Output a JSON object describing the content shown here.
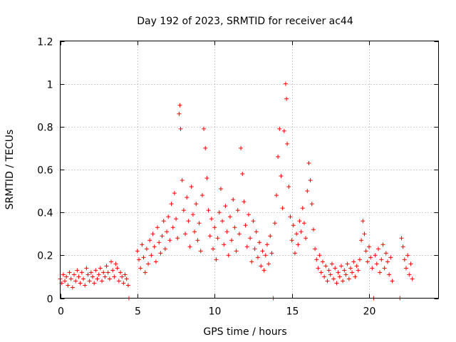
{
  "chart_data": {
    "type": "scatter",
    "title": "Day 192 of 2023, SRMTID for receiver ac44",
    "xlabel": "GPS time / hours",
    "ylabel": "SRMTID / TECUs",
    "xlim": [
      0,
      24.5
    ],
    "ylim": [
      0,
      1.2
    ],
    "grid": true,
    "legend": "none",
    "marker": "+",
    "marker_color": "#ff0000",
    "x_ticks": [
      {
        "value": 0,
        "label": "0"
      },
      {
        "value": 5,
        "label": "5"
      },
      {
        "value": 10,
        "label": "10"
      },
      {
        "value": 15,
        "label": "15"
      },
      {
        "value": 20,
        "label": "20"
      }
    ],
    "y_ticks": [
      {
        "value": 0,
        "label": "0"
      },
      {
        "value": 0.2,
        "label": "0.2"
      },
      {
        "value": 0.4,
        "label": "0.4"
      },
      {
        "value": 0.6,
        "label": "0.6"
      },
      {
        "value": 0.8,
        "label": "0.8"
      },
      {
        "value": 1.0,
        "label": "1"
      },
      {
        "value": 1.2,
        "label": "1.2"
      }
    ],
    "series": [
      {
        "name": "SRMTID",
        "points": [
          [
            0.0,
            0.09
          ],
          [
            0.1,
            0.07
          ],
          [
            0.2,
            0.11
          ],
          [
            0.3,
            0.08
          ],
          [
            0.4,
            0.1
          ],
          [
            0.5,
            0.06
          ],
          [
            0.6,
            0.12
          ],
          [
            0.7,
            0.09
          ],
          [
            0.8,
            0.05
          ],
          [
            0.9,
            0.11
          ],
          [
            1.0,
            0.08
          ],
          [
            1.1,
            0.13
          ],
          [
            1.2,
            0.1
          ],
          [
            1.3,
            0.07
          ],
          [
            1.4,
            0.12
          ],
          [
            1.5,
            0.09
          ],
          [
            1.6,
            0.06
          ],
          [
            1.7,
            0.14
          ],
          [
            1.8,
            0.11
          ],
          [
            1.9,
            0.08
          ],
          [
            2.0,
            0.12
          ],
          [
            2.1,
            0.1
          ],
          [
            2.2,
            0.07
          ],
          [
            2.3,
            0.13
          ],
          [
            2.4,
            0.09
          ],
          [
            2.5,
            0.11
          ],
          [
            2.6,
            0.14
          ],
          [
            2.7,
            0.08
          ],
          [
            2.8,
            0.12
          ],
          [
            2.9,
            0.1
          ],
          [
            3.0,
            0.15
          ],
          [
            3.1,
            0.12
          ],
          [
            3.2,
            0.09
          ],
          [
            3.3,
            0.17
          ],
          [
            3.4,
            0.13
          ],
          [
            3.5,
            0.1
          ],
          [
            3.6,
            0.16
          ],
          [
            3.7,
            0.14
          ],
          [
            3.8,
            0.08
          ],
          [
            3.9,
            0.12
          ],
          [
            4.0,
            0.1
          ],
          [
            4.1,
            0.07
          ],
          [
            4.2,
            0.11
          ],
          [
            4.3,
            0.09
          ],
          [
            4.4,
            0.06
          ],
          [
            4.45,
            0.0
          ],
          [
            5.0,
            0.22
          ],
          [
            5.1,
            0.18
          ],
          [
            5.2,
            0.14
          ],
          [
            5.3,
            0.25
          ],
          [
            5.4,
            0.19
          ],
          [
            5.5,
            0.12
          ],
          [
            5.6,
            0.23
          ],
          [
            5.7,
            0.16
          ],
          [
            5.8,
            0.27
          ],
          [
            5.9,
            0.2
          ],
          [
            6.0,
            0.3
          ],
          [
            6.1,
            0.24
          ],
          [
            6.2,
            0.17
          ],
          [
            6.3,
            0.33
          ],
          [
            6.4,
            0.26
          ],
          [
            6.5,
            0.21
          ],
          [
            6.6,
            0.29
          ],
          [
            6.7,
            0.36
          ],
          [
            6.8,
            0.23
          ],
          [
            6.9,
            0.31
          ],
          [
            7.0,
            0.38
          ],
          [
            7.1,
            0.27
          ],
          [
            7.2,
            0.44
          ],
          [
            7.3,
            0.33
          ],
          [
            7.4,
            0.49
          ],
          [
            7.5,
            0.37
          ],
          [
            7.6,
            0.28
          ],
          [
            7.7,
            0.86
          ],
          [
            7.75,
            0.9
          ],
          [
            7.8,
            0.79
          ],
          [
            7.9,
            0.55
          ],
          [
            8.0,
            0.41
          ],
          [
            8.1,
            0.3
          ],
          [
            8.2,
            0.47
          ],
          [
            8.3,
            0.36
          ],
          [
            8.4,
            0.24
          ],
          [
            8.5,
            0.52
          ],
          [
            8.6,
            0.39
          ],
          [
            8.7,
            0.31
          ],
          [
            8.8,
            0.44
          ],
          [
            8.9,
            0.27
          ],
          [
            9.0,
            0.35
          ],
          [
            9.1,
            0.22
          ],
          [
            9.2,
            0.48
          ],
          [
            9.3,
            0.79
          ],
          [
            9.4,
            0.7
          ],
          [
            9.5,
            0.56
          ],
          [
            9.6,
            0.41
          ],
          [
            9.7,
            0.29
          ],
          [
            9.8,
            0.37
          ],
          [
            9.9,
            0.23
          ],
          [
            10.0,
            0.33
          ],
          [
            10.1,
            0.18
          ],
          [
            10.2,
            0.28
          ],
          [
            10.3,
            0.4
          ],
          [
            10.4,
            0.51
          ],
          [
            10.5,
            0.36
          ],
          [
            10.6,
            0.25
          ],
          [
            10.7,
            0.43
          ],
          [
            10.8,
            0.31
          ],
          [
            10.9,
            0.2
          ],
          [
            11.0,
            0.38
          ],
          [
            11.1,
            0.27
          ],
          [
            11.2,
            0.46
          ],
          [
            11.3,
            0.33
          ],
          [
            11.4,
            0.22
          ],
          [
            11.5,
            0.41
          ],
          [
            11.6,
            0.3
          ],
          [
            11.7,
            0.7
          ],
          [
            11.8,
            0.58
          ],
          [
            11.9,
            0.45
          ],
          [
            12.0,
            0.34
          ],
          [
            12.1,
            0.24
          ],
          [
            12.2,
            0.39
          ],
          [
            12.3,
            0.28
          ],
          [
            12.4,
            0.17
          ],
          [
            12.5,
            0.36
          ],
          [
            12.6,
            0.23
          ],
          [
            12.7,
            0.31
          ],
          [
            12.8,
            0.19
          ],
          [
            12.9,
            0.26
          ],
          [
            13.0,
            0.15
          ],
          [
            13.1,
            0.22
          ],
          [
            13.2,
            0.13
          ],
          [
            13.3,
            0.2
          ],
          [
            13.4,
            0.25
          ],
          [
            13.5,
            0.16
          ],
          [
            13.6,
            0.29
          ],
          [
            13.7,
            0.21
          ],
          [
            13.8,
            0.0
          ],
          [
            13.9,
            0.35
          ],
          [
            14.0,
            0.48
          ],
          [
            14.1,
            0.66
          ],
          [
            14.2,
            0.79
          ],
          [
            14.3,
            0.57
          ],
          [
            14.4,
            0.42
          ],
          [
            14.5,
            0.78
          ],
          [
            14.6,
            1.0
          ],
          [
            14.65,
            0.93
          ],
          [
            14.7,
            0.72
          ],
          [
            14.8,
            0.52
          ],
          [
            14.9,
            0.38
          ],
          [
            15.0,
            0.27
          ],
          [
            15.1,
            0.34
          ],
          [
            15.2,
            0.21
          ],
          [
            15.3,
            0.3
          ],
          [
            15.4,
            0.25
          ],
          [
            15.5,
            0.36
          ],
          [
            15.6,
            0.31
          ],
          [
            15.7,
            0.42
          ],
          [
            15.8,
            0.35
          ],
          [
            15.9,
            0.28
          ],
          [
            16.0,
            0.5
          ],
          [
            16.1,
            0.63
          ],
          [
            16.2,
            0.55
          ],
          [
            16.3,
            0.44
          ],
          [
            16.4,
            0.32
          ],
          [
            16.5,
            0.23
          ],
          [
            16.6,
            0.18
          ],
          [
            16.7,
            0.14
          ],
          [
            16.8,
            0.2
          ],
          [
            16.9,
            0.12
          ],
          [
            17.0,
            0.17
          ],
          [
            17.1,
            0.1
          ],
          [
            17.2,
            0.15
          ],
          [
            17.3,
            0.08
          ],
          [
            17.4,
            0.13
          ],
          [
            17.5,
            0.11
          ],
          [
            17.6,
            0.16
          ],
          [
            17.7,
            0.09
          ],
          [
            17.8,
            0.14
          ],
          [
            17.9,
            0.07
          ],
          [
            18.0,
            0.12
          ],
          [
            18.1,
            0.1
          ],
          [
            18.2,
            0.15
          ],
          [
            18.3,
            0.08
          ],
          [
            18.4,
            0.13
          ],
          [
            18.5,
            0.11
          ],
          [
            18.6,
            0.16
          ],
          [
            18.7,
            0.09
          ],
          [
            18.8,
            0.14
          ],
          [
            18.9,
            0.12
          ],
          [
            19.0,
            0.17
          ],
          [
            19.1,
            0.1
          ],
          [
            19.2,
            0.15
          ],
          [
            19.3,
            0.13
          ],
          [
            19.4,
            0.18
          ],
          [
            19.5,
            0.27
          ],
          [
            19.6,
            0.36
          ],
          [
            19.7,
            0.3
          ],
          [
            19.8,
            0.22
          ],
          [
            19.9,
            0.17
          ],
          [
            20.0,
            0.24
          ],
          [
            20.1,
            0.19
          ],
          [
            20.2,
            0.14
          ],
          [
            20.3,
            0.0
          ],
          [
            20.4,
            0.2
          ],
          [
            20.5,
            0.16
          ],
          [
            20.6,
            0.23
          ],
          [
            20.7,
            0.12
          ],
          [
            20.8,
            0.18
          ],
          [
            20.9,
            0.25
          ],
          [
            21.0,
            0.14
          ],
          [
            21.1,
            0.21
          ],
          [
            21.2,
            0.17
          ],
          [
            21.3,
            0.11
          ],
          [
            21.4,
            0.19
          ],
          [
            21.5,
            0.08
          ],
          [
            22.0,
            0.0
          ],
          [
            22.1,
            0.28
          ],
          [
            22.2,
            0.24
          ],
          [
            22.3,
            0.18
          ],
          [
            22.4,
            0.14
          ],
          [
            22.5,
            0.2
          ],
          [
            22.6,
            0.11
          ],
          [
            22.7,
            0.16
          ],
          [
            22.8,
            0.09
          ]
        ]
      }
    ]
  }
}
